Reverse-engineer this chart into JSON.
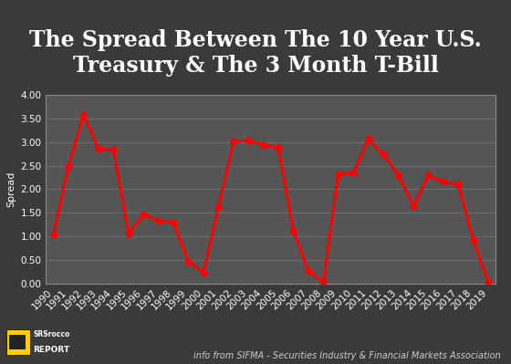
{
  "title": "The Spread Between The 10 Year U.S.\nTreasury & The 3 Month T-Bill",
  "ylabel": "Spread",
  "footnote": "info from SIFMA - Securities Industry & Financial Markets Association",
  "years": [
    1990,
    1991,
    1992,
    1993,
    1994,
    1995,
    1996,
    1997,
    1998,
    1999,
    2000,
    2001,
    2002,
    2003,
    2004,
    2005,
    2006,
    2007,
    2008,
    2009,
    2010,
    2011,
    2012,
    2013,
    2014,
    2015,
    2016,
    2017,
    2018,
    2019
  ],
  "values": [
    1.04,
    2.5,
    3.58,
    2.85,
    2.83,
    1.06,
    1.47,
    1.33,
    1.3,
    0.47,
    0.24,
    1.63,
    3.01,
    3.03,
    2.94,
    2.87,
    1.12,
    0.27,
    0.05,
    2.32,
    2.35,
    3.06,
    2.74,
    2.3,
    1.64,
    2.29,
    2.16,
    2.1,
    0.92,
    0.04
  ],
  "line_color": "#ff0000",
  "marker": "D",
  "marker_size": 4,
  "line_width": 2.2,
  "bg_color": "#3a3a3a",
  "plot_bg_color": "#555555",
  "grid_color": "#888888",
  "text_color": "#ffffff",
  "tick_color": "#ffffff",
  "ylim": [
    0.0,
    4.0
  ],
  "yticks": [
    0.0,
    0.5,
    1.0,
    1.5,
    2.0,
    2.5,
    3.0,
    3.5,
    4.0
  ],
  "title_fontsize": 17,
  "label_fontsize": 8,
  "tick_fontsize": 7.5,
  "footnote_fontsize": 7,
  "logo_text1": "SRSrocco",
  "logo_text2": "REPORT",
  "logo_bg": "#cc1111",
  "logo_icon_color": "#ffcc00"
}
